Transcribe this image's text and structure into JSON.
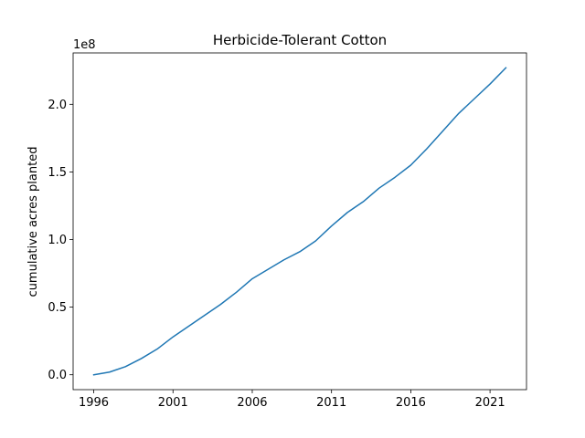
{
  "chart_data": {
    "type": "line",
    "title": "Herbicide-Tolerant Cotton",
    "xlabel": "",
    "ylabel": "cumulative acres planted",
    "y_offset_label": "1e8",
    "xlim": [
      1994.7,
      2023.3
    ],
    "ylim": [
      -0.11,
      2.38
    ],
    "x_ticks": [
      1996,
      2001,
      2006,
      2011,
      2016,
      2021
    ],
    "y_ticks": [
      0.0,
      0.5,
      1.0,
      1.5,
      2.0
    ],
    "y_tick_labels": [
      "0.0",
      "0.5",
      "1.0",
      "1.5",
      "2.0"
    ],
    "grid": false,
    "line_color": "#1f77b4",
    "series": [
      {
        "x": [
          1996,
          1997,
          1998,
          1999,
          2000,
          2001,
          2002,
          2003,
          2004,
          2005,
          2006,
          2007,
          2008,
          2009,
          2010,
          2011,
          2012,
          2013,
          2014,
          2015,
          2016,
          2017,
          2018,
          2019,
          2020,
          2021,
          2022
        ],
        "values": [
          0.0,
          0.02,
          0.06,
          0.12,
          0.19,
          0.28,
          0.36,
          0.44,
          0.52,
          0.61,
          0.71,
          0.78,
          0.85,
          0.91,
          0.99,
          1.1,
          1.2,
          1.28,
          1.38,
          1.46,
          1.55,
          1.67,
          1.8,
          1.93,
          2.04,
          2.15,
          2.27
        ]
      }
    ]
  }
}
